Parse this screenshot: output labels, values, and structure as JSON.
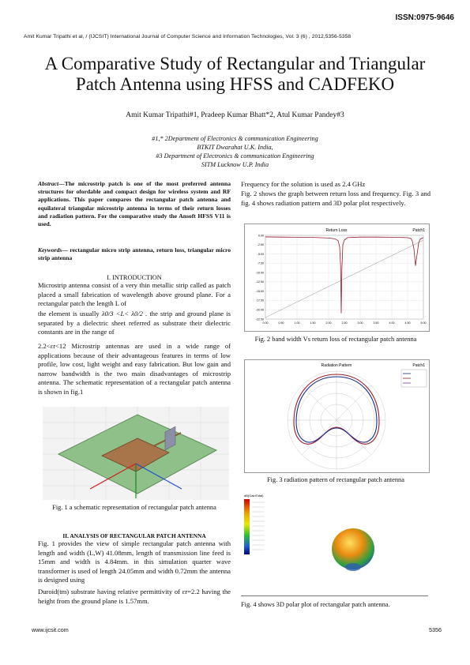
{
  "header": {
    "issn": "ISSN:0975-9646",
    "running": "Amit Kumar Tripathi et al, / (IJCSIT) International Journal of Computer Science and Information Technologies, Vol. 3 (6) , 2012,5356-5358"
  },
  "title": "A Comparative Study of Rectangular and Triangular Patch Antenna using HFSS and CADFEKO",
  "authors": "Amit Kumar Tripathi#1, Pradeep Kumar Bhatt*2, Atul Kumar Pandey#3",
  "affiliations": [
    "#1,* 2Department of Electronics & communication Engineering",
    "BTKIT Dwarahat U.K. India,",
    "#3 Department of Electronics & communication Engineering",
    "SITM Lucknow U.P. India"
  ],
  "abstract": {
    "label": "Abstract",
    "text": "—The microstrip patch is one of the most preferred antenna structures for ofordable and compact design for wireless system and RF applications. This paper compares the rectangular patch antenna and equilateral triangular microstrip antenna in terms of their return losses and radiation pattern. For the comparative study the Ansoft HFSS V11 is used."
  },
  "keywords": {
    "label": "Keywords",
    "text": "— rectangular micro strip antenna, return loss, triangular micro strip antenna"
  },
  "intro": {
    "heading": "I.  INTRODUCTION",
    "p1": "Microstrip antenna consist of a very thin metallic strip called as patch placed a small fabrication of wavelength above ground plane. For a rectangular patch the length L of",
    "p2a": "the element is usually",
    "p2b": "λ0/3 <L< λ0/2 .",
    "p2c": " the strip and ground plane is separated by a dielectric sheet referred as substrate   their dielectric constants are in the range of",
    "p3": "2.2<εr<12  Microstrip antennas are used in a wide range of applications because of their advantageous features in terms of low profile, low cost, light weight and easy fabrication. But low gain and narrow bandwidth is the two main disadvantages of microstrip antenna. The schematic representation of a rectangular patch antenna is shown in fig.1"
  },
  "fig1_caption": "Fig. 1 a schematic representation of rectangular patch antenna",
  "analysis": {
    "heading": "II.  ANALYSIS OF RECTANGULAR PATCH ANTENNA",
    "p1": "Fig. 1 provides the view of simple rectangular patch antenna with length and width (L,W) 41.08mm, length of transmission line feed is 15mm and width is 4.84mm. in this simulation quarter wave transformer is used of length 24.05mm and width 0.72mm the antenna is designed using",
    "p2": "Duroid(tm) substrate having  relative permittivity of εr=2.2 having the height from the ground plane is 1.57mm."
  },
  "right": {
    "p1": "Frequency for the solution is used as 2.4 GHz",
    "p2": "Fig. 2 shows the graph between return loss and frequency. Fig. 3 and fig. 4 shows radiation pattern and 3D polar plot respectively."
  },
  "fig2": {
    "caption": "Fig. 2 band width Vs return loss of rectangular patch antenna",
    "plot_title": "Return Loss",
    "corner": "Patch1"
  },
  "fig3": {
    "caption": "Fig. 3 radiation pattern of rectangular patch antenna",
    "plot_title": "Radiation Pattern",
    "corner": "Patch1"
  },
  "fig4": {
    "caption": "Fig. 4 shows 3D polar plot of rectangular patch antenna.",
    "plot_title": "dB(GainTotal)"
  },
  "footer": {
    "site": "www.ijcsit.com",
    "page": "5356"
  },
  "chart_data": [
    {
      "type": "line",
      "title": "Return Loss",
      "x": [
        0.0,
        0.5,
        1.0,
        1.5,
        2.0,
        2.2,
        2.3,
        2.35,
        2.38,
        2.4,
        2.42,
        2.45,
        2.5,
        2.6,
        3.0,
        3.5,
        4.0,
        4.5,
        4.6,
        4.65,
        4.7,
        4.75,
        4.8,
        4.85,
        4.9,
        5.0
      ],
      "series": [
        {
          "values": [
            -0.4,
            -0.45,
            -0.5,
            -0.55,
            -0.7,
            -0.9,
            -1.4,
            -3.0,
            -8.0,
            -20.5,
            -9.0,
            -2.5,
            -1.2,
            -0.6,
            -0.45,
            -0.45,
            -0.5,
            -0.6,
            -0.8,
            -1.5,
            -3.5,
            -8.0,
            -5.0,
            -2.0,
            -1.0,
            -0.6
          ]
        }
      ],
      "ylim": [
        -22,
        0
      ],
      "xlim": [
        0.0,
        5.0
      ],
      "xticks": [
        "0.00",
        "0.50",
        "1.00",
        "1.50",
        "2.00",
        "2.50",
        "3.00",
        "3.50",
        "4.00",
        "4.50",
        "5.00"
      ],
      "yticks": [
        "0.00",
        "-2.50",
        "-5.00",
        "-7.50",
        "-10.00",
        "-12.50",
        "-15.00",
        "-17.50",
        "-20.00",
        "-22.50"
      ],
      "grid": true
    }
  ]
}
